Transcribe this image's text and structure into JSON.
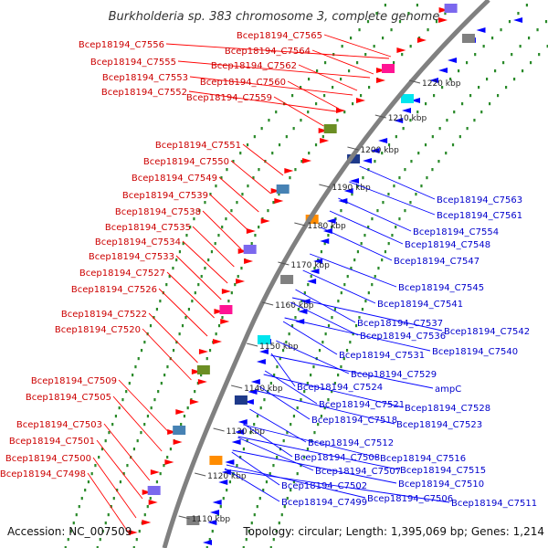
{
  "title": "Burkholderia sp. 383 chromosome 3, complete genome",
  "footer": {
    "accession": "Accession: NC_007509",
    "summary": "Topology: circular; Length: 1,395,069 bp; Genes: 1,214"
  },
  "colors": {
    "forward_label": "#cc0000",
    "reverse_label": "#0000cc",
    "forward_feature": "#ff0000",
    "reverse_feature": "#0000ff",
    "backbone": "#808080",
    "dots": "#2a8a2a"
  },
  "ticks": [
    "1220 kbp",
    "1210 kbp",
    "1200 kbp",
    "1190 kbp",
    "1180 kbp",
    "1170 kbp",
    "1160 kbp",
    "1150 kbp",
    "1140 kbp",
    "1130 kbp",
    "1120 kbp",
    "1110 kbp"
  ],
  "left_labels": [
    "Bcep18194_C7556",
    "Bcep18194_C7555",
    "Bcep18194_C7553",
    "Bcep18194_C7552",
    "Bcep18194_C7565",
    "Bcep18194_C7564",
    "Bcep18194_C7562",
    "Bcep18194_C7560",
    "Bcep18194_C7559",
    "Bcep18194_C7551",
    "Bcep18194_C7550",
    "Bcep18194_C7549",
    "Bcep18194_C7539",
    "Bcep18194_C7538",
    "Bcep18194_C7535",
    "Bcep18194_C7534",
    "Bcep18194_C7533",
    "Bcep18194_C7527",
    "Bcep18194_C7526",
    "Bcep18194_C7522",
    "Bcep18194_C7520",
    "Bcep18194_C7509",
    "Bcep18194_C7505",
    "Bcep18194_C7503",
    "Bcep18194_C7501",
    "Bcep18194_C7500",
    "Bcep18194_C7498"
  ],
  "right_labels": [
    "Bcep18194_C7563",
    "Bcep18194_C7561",
    "Bcep18194_C7554",
    "Bcep18194_C7548",
    "Bcep18194_C7547",
    "Bcep18194_C7545",
    "Bcep18194_C7541",
    "Bcep18194_C7537",
    "Bcep18194_C7542",
    "Bcep18194_C7536",
    "Bcep18194_C7540",
    "Bcep18194_C7531",
    "Bcep18194_C7529",
    "ampC",
    "Bcep18194_C7524",
    "Bcep18194_C7521",
    "Bcep18194_C7528",
    "Bcep18194_C7518",
    "Bcep18194_C7523",
    "Bcep18194_C7512",
    "Bcep18194_C7508",
    "Bcep18194_C7516",
    "Bcep18194_C7507",
    "Bcep18194_C7515",
    "Bcep18194_C7510",
    "Bcep18194_C7502",
    "Bcep18194_C7506",
    "Bcep18194_C7499",
    "Bcep18194_C7511"
  ]
}
